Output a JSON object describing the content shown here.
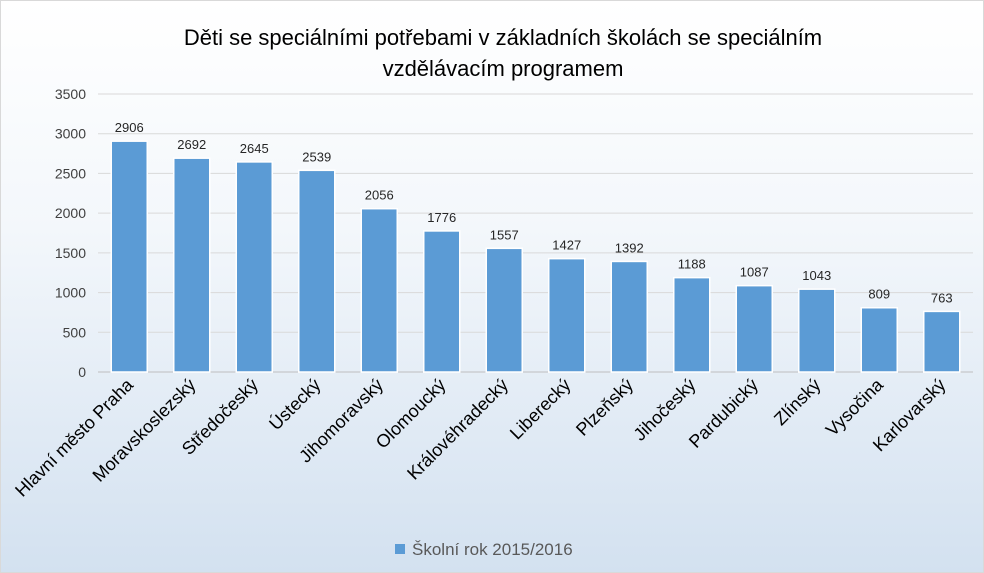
{
  "chart_data": {
    "type": "bar",
    "title_line1": "Děti se speciálními potřebami v základních školách se speciálním",
    "title_line2": "vzdělávacím programem",
    "categories": [
      "Hlavní město Praha",
      "Moravskoslezský",
      "Středočeský",
      "Ústecký",
      "Jihomoravský",
      "Olomoucký",
      "Královéhradecký",
      "Liberecký",
      "Plzeňský",
      "Jihočeský",
      "Pardubický",
      "Zlínský",
      "Vysočina",
      "Karlovarský"
    ],
    "series": [
      {
        "name": "Školní rok 2015/2016",
        "values": [
          2906,
          2692,
          2645,
          2539,
          2056,
          1776,
          1557,
          1427,
          1392,
          1188,
          1087,
          1043,
          809,
          763
        ],
        "color": "#5b9bd5"
      }
    ],
    "yticks": [
      0,
      500,
      1000,
      1500,
      2000,
      2500,
      3000,
      3500
    ],
    "ylim": [
      0,
      3500
    ],
    "grid": true,
    "legend": "bottom"
  }
}
